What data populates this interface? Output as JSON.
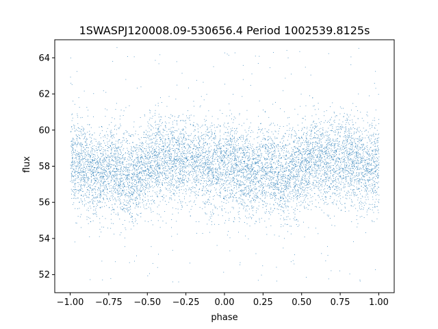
{
  "chart_data": {
    "type": "scatter",
    "title": "1SWASPJ120008.09-530656.4 Period 1002539.8125s",
    "xlabel": "phase",
    "ylabel": "flux",
    "xlim": [
      -1.1,
      1.1
    ],
    "ylim": [
      51.0,
      65.0
    ],
    "xticks": [
      -1.0,
      -0.75,
      -0.5,
      -0.25,
      0.0,
      0.25,
      0.5,
      0.75,
      1.0
    ],
    "xtick_labels": [
      "−1.00",
      "−0.75",
      "−0.50",
      "−0.25",
      "0.00",
      "0.25",
      "0.50",
      "0.75",
      "1.00"
    ],
    "yticks": [
      52,
      54,
      56,
      58,
      60,
      62,
      64
    ],
    "ytick_labels": [
      "52",
      "54",
      "56",
      "58",
      "60",
      "62",
      "64"
    ],
    "grid": false,
    "legend": "none",
    "marker_color": "#1f77b4",
    "series": [
      {
        "x_range": [
          -1.0,
          1.0
        ],
        "profile": [
          {
            "x": -1.0,
            "y": 58.1
          },
          {
            "x": -0.95,
            "y": 58.2
          },
          {
            "x": -0.9,
            "y": 57.9
          },
          {
            "x": -0.85,
            "y": 57.7
          },
          {
            "x": -0.8,
            "y": 57.6
          },
          {
            "x": -0.75,
            "y": 57.8
          },
          {
            "x": -0.7,
            "y": 57.9
          },
          {
            "x": -0.65,
            "y": 57.5
          },
          {
            "x": -0.6,
            "y": 57.4
          },
          {
            "x": -0.55,
            "y": 57.7
          },
          {
            "x": -0.5,
            "y": 58.0
          },
          {
            "x": -0.45,
            "y": 58.2
          },
          {
            "x": -0.4,
            "y": 58.3
          },
          {
            "x": -0.35,
            "y": 58.4
          },
          {
            "x": -0.3,
            "y": 58.3
          },
          {
            "x": -0.25,
            "y": 58.5
          },
          {
            "x": -0.2,
            "y": 58.4
          },
          {
            "x": -0.15,
            "y": 58.2
          },
          {
            "x": -0.1,
            "y": 58.0
          },
          {
            "x": -0.05,
            "y": 58.0
          },
          {
            "x": 0.0,
            "y": 58.1
          },
          {
            "x": 0.05,
            "y": 58.2
          },
          {
            "x": 0.1,
            "y": 57.9
          },
          {
            "x": 0.15,
            "y": 57.7
          },
          {
            "x": 0.2,
            "y": 57.6
          },
          {
            "x": 0.25,
            "y": 57.8
          },
          {
            "x": 0.3,
            "y": 57.9
          },
          {
            "x": 0.35,
            "y": 57.5
          },
          {
            "x": 0.4,
            "y": 57.4
          },
          {
            "x": 0.45,
            "y": 57.7
          },
          {
            "x": 0.5,
            "y": 58.0
          },
          {
            "x": 0.55,
            "y": 58.2
          },
          {
            "x": 0.6,
            "y": 58.3
          },
          {
            "x": 0.65,
            "y": 58.4
          },
          {
            "x": 0.7,
            "y": 58.3
          },
          {
            "x": 0.75,
            "y": 58.5
          },
          {
            "x": 0.8,
            "y": 58.4
          },
          {
            "x": 0.85,
            "y": 58.2
          },
          {
            "x": 0.9,
            "y": 58.0
          },
          {
            "x": 0.95,
            "y": 58.0
          },
          {
            "x": 1.0,
            "y": 58.1
          }
        ],
        "spread_sd": 1.2,
        "outlier_fraction": 0.03,
        "n_points": 9000
      }
    ]
  }
}
